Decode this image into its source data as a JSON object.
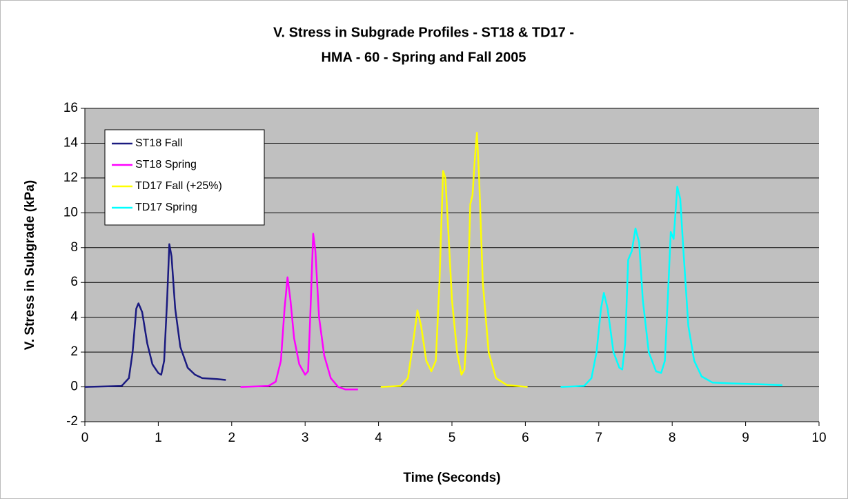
{
  "chart_data": {
    "type": "line",
    "title": [
      "V. Stress in Subgrade Profiles - ST18 & TD17 -",
      "HMA - 60 - Spring and Fall 2005"
    ],
    "xlabel": "Time (Seconds)",
    "ylabel": "V. Stress in Subgrade (kPa)",
    "xlim": [
      0,
      10
    ],
    "ylim": [
      -2,
      16
    ],
    "xticks": [
      0,
      1,
      2,
      3,
      4,
      5,
      6,
      7,
      8,
      9,
      10
    ],
    "yticks": [
      -2,
      0,
      2,
      4,
      6,
      8,
      10,
      12,
      14,
      16
    ],
    "grid": true,
    "legend": "upper left",
    "series": [
      {
        "name": "ST18 Fall",
        "color": "#1a1a80",
        "x": [
          0,
          0.5,
          0.6,
          0.65,
          0.7,
          0.73,
          0.78,
          0.85,
          0.92,
          1.0,
          1.04,
          1.08,
          1.12,
          1.15,
          1.18,
          1.23,
          1.3,
          1.4,
          1.5,
          1.6,
          1.8,
          1.92
        ],
        "values": [
          0,
          0.05,
          0.5,
          2,
          4.5,
          4.8,
          4.3,
          2.5,
          1.3,
          0.8,
          0.7,
          1.5,
          5,
          8.2,
          7.5,
          4.5,
          2.3,
          1.1,
          0.7,
          0.5,
          0.45,
          0.4
        ]
      },
      {
        "name": "ST18 Spring",
        "color": "#ff00ff",
        "x": [
          2.12,
          2.5,
          2.6,
          2.67,
          2.72,
          2.76,
          2.8,
          2.85,
          2.92,
          3.0,
          3.04,
          3.07,
          3.11,
          3.14,
          3.19,
          3.26,
          3.35,
          3.45,
          3.55,
          3.72
        ],
        "values": [
          0,
          0.05,
          0.3,
          1.5,
          4.5,
          6.3,
          5,
          2.8,
          1.3,
          0.7,
          0.9,
          4,
          8.8,
          7.8,
          4,
          1.8,
          0.5,
          0,
          -0.15,
          -0.15
        ]
      },
      {
        "name": "TD17 Fall (+25%)",
        "color": "#ffff00",
        "x": [
          4.03,
          4.3,
          4.4,
          4.47,
          4.53,
          4.58,
          4.65,
          4.72,
          4.78,
          4.83,
          4.88,
          4.91,
          4.95,
          5.0,
          5.07,
          5.13,
          5.17,
          5.2,
          5.25,
          5.28,
          5.31,
          5.34,
          5.37,
          5.42,
          5.5,
          5.6,
          5.75,
          6.03
        ],
        "values": [
          0,
          0.05,
          0.5,
          2.5,
          4.4,
          3.5,
          1.5,
          0.9,
          1.5,
          6,
          12.4,
          12,
          9,
          5,
          2,
          0.7,
          1,
          3,
          10.5,
          11,
          13,
          14.6,
          12,
          6,
          2,
          0.5,
          0.1,
          0
        ]
      },
      {
        "name": "TD17 Spring",
        "color": "#00ffff",
        "x": [
          6.48,
          6.8,
          6.9,
          6.97,
          7.03,
          7.07,
          7.12,
          7.2,
          7.28,
          7.32,
          7.36,
          7.4,
          7.45,
          7.5,
          7.55,
          7.6,
          7.68,
          7.78,
          7.85,
          7.9,
          7.95,
          7.98,
          8.02,
          8.07,
          8.11,
          8.15,
          8.22,
          8.3,
          8.4,
          8.55,
          8.8,
          9.2,
          9.5
        ],
        "values": [
          0,
          0.05,
          0.5,
          2,
          4.5,
          5.4,
          4.5,
          2,
          1.1,
          1,
          2.5,
          7.3,
          7.8,
          9.1,
          8.3,
          5,
          2,
          0.9,
          0.8,
          1.5,
          6,
          8.9,
          8.5,
          11.5,
          10.8,
          8,
          3.5,
          1.5,
          0.6,
          0.25,
          0.2,
          0.15,
          0.1
        ]
      }
    ]
  }
}
